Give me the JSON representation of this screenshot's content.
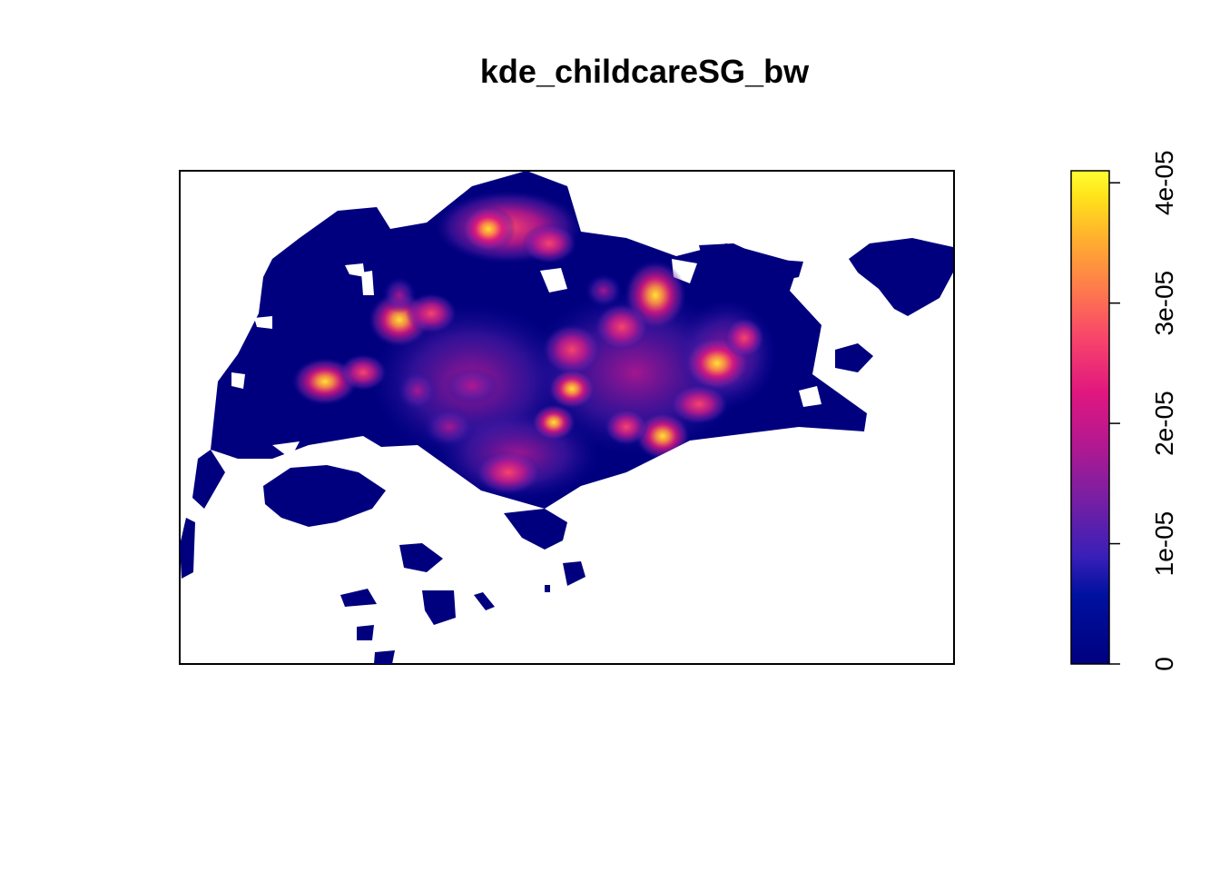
{
  "title": "kde_childcareSG_bw",
  "legend": {
    "scale": "continuous",
    "min": 0,
    "max": 4.1e-05,
    "tick_values": [
      0,
      1e-05,
      2e-05,
      3e-05,
      4e-05
    ],
    "tick_labels": [
      "0",
      "1e-05",
      "2e-05",
      "3e-05",
      "4e-05"
    ],
    "palette": [
      "#00007f",
      "#0011a0",
      "#3a1fb8",
      "#7a1fa2",
      "#b51890",
      "#e0177f",
      "#f8446b",
      "#fe7a4c",
      "#ffae2e",
      "#ffe41a",
      "#ffff33"
    ]
  },
  "map": {
    "background": "#ffffff",
    "hotspots": [
      {
        "id": "northwest",
        "density": 3.6e-05
      },
      {
        "id": "northeast",
        "density": 4.2e-05
      },
      {
        "id": "west",
        "density": 3e-05
      },
      {
        "id": "central-west",
        "density": 3.2e-05
      },
      {
        "id": "east",
        "density": 2.9e-05
      },
      {
        "id": "southeast",
        "density": 3.8e-05
      },
      {
        "id": "south-central",
        "density": 2.6e-05
      }
    ]
  }
}
